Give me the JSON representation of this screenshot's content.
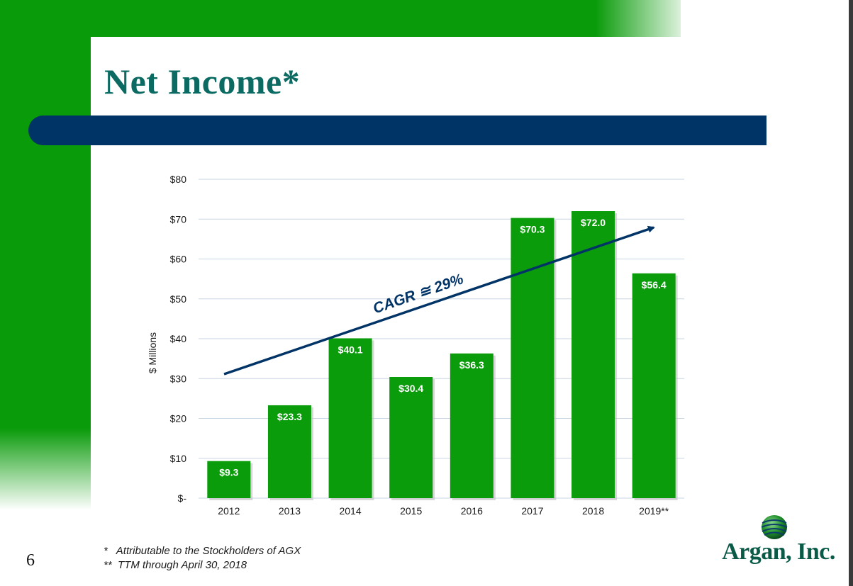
{
  "slide": {
    "title": "Net Income*",
    "page_number": "6",
    "footnotes": [
      "*   Attributable to the Stockholders of AGX",
      "**  TTM through April 30, 2018"
    ],
    "logo_text": "Argan, Inc.",
    "annotation": "CAGR ≅ 29%"
  },
  "colors": {
    "green": "#0a9b0a",
    "bar_green": "#0b9c0b",
    "navy": "#003366",
    "title_teal": "#0b6b62"
  },
  "chart_data": {
    "type": "bar",
    "title": "",
    "xlabel": "",
    "ylabel": "$ Millions",
    "categories": [
      "2012",
      "2013",
      "2014",
      "2015",
      "2016",
      "2017",
      "2018",
      "2019**"
    ],
    "values": [
      9.3,
      23.3,
      40.1,
      30.4,
      36.3,
      70.3,
      72.0,
      56.4
    ],
    "data_labels": [
      "$9.3",
      "$23.3",
      "$40.1",
      "$30.4",
      "$36.3",
      "$70.3",
      "$72.0",
      "$56.4"
    ],
    "ylim": [
      0,
      80
    ],
    "yticks": [
      0,
      10,
      20,
      30,
      40,
      50,
      60,
      70,
      80
    ],
    "ytick_labels": [
      "$-",
      "$10",
      "$20",
      "$30",
      "$40",
      "$50",
      "$60",
      "$70",
      "$80"
    ],
    "grid": true,
    "legend": "none"
  }
}
